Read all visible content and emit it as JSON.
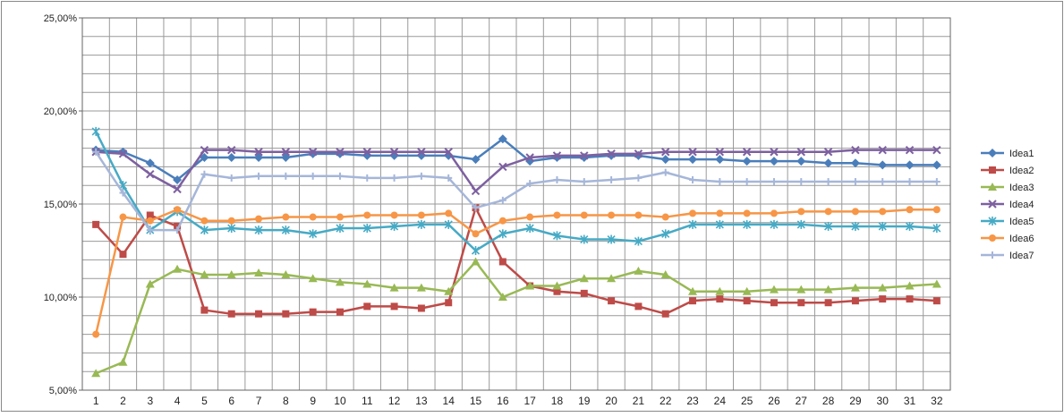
{
  "chart_data": {
    "type": "line",
    "title": "",
    "xlabel": "",
    "ylabel": "",
    "x": [
      1,
      2,
      3,
      4,
      5,
      6,
      7,
      8,
      9,
      10,
      11,
      12,
      13,
      14,
      15,
      16,
      17,
      18,
      19,
      20,
      21,
      22,
      23,
      24,
      25,
      26,
      27,
      28,
      29,
      30,
      31,
      32
    ],
    "xticks": [
      "1",
      "2",
      "3",
      "4",
      "5",
      "6",
      "7",
      "8",
      "9",
      "10",
      "11",
      "12",
      "13",
      "14",
      "15",
      "16",
      "17",
      "18",
      "19",
      "20",
      "21",
      "22",
      "23",
      "24",
      "25",
      "26",
      "27",
      "28",
      "29",
      "30",
      "31",
      "32"
    ],
    "ylim": [
      0.05,
      0.25
    ],
    "yticks": [
      "5,00%",
      "10,00%",
      "15,00%",
      "20,00%",
      "25,00%"
    ],
    "grid": true,
    "legend_position": "right",
    "series": [
      {
        "name": "Idea1",
        "color": "#4a7ebb",
        "marker": "diamond",
        "values": [
          0.179,
          0.178,
          0.172,
          0.163,
          0.175,
          0.175,
          0.175,
          0.175,
          0.177,
          0.177,
          0.176,
          0.176,
          0.176,
          0.176,
          0.174,
          0.185,
          0.173,
          0.175,
          0.175,
          0.176,
          0.176,
          0.174,
          0.174,
          0.174,
          0.173,
          0.173,
          0.173,
          0.172,
          0.172,
          0.171,
          0.171,
          0.171
        ]
      },
      {
        "name": "Idea2",
        "color": "#be4b48",
        "marker": "square",
        "values": [
          0.139,
          0.123,
          0.144,
          0.138,
          0.093,
          0.091,
          0.091,
          0.091,
          0.092,
          0.092,
          0.095,
          0.095,
          0.094,
          0.097,
          0.148,
          0.119,
          0.106,
          0.103,
          0.102,
          0.098,
          0.095,
          0.091,
          0.098,
          0.099,
          0.098,
          0.097,
          0.097,
          0.097,
          0.098,
          0.099,
          0.099,
          0.098
        ]
      },
      {
        "name": "Idea3",
        "color": "#98b954",
        "marker": "triangle",
        "values": [
          0.059,
          0.065,
          0.107,
          0.115,
          0.112,
          0.112,
          0.113,
          0.112,
          0.11,
          0.108,
          0.107,
          0.105,
          0.105,
          0.103,
          0.119,
          0.1,
          0.106,
          0.106,
          0.11,
          0.11,
          0.114,
          0.112,
          0.103,
          0.103,
          0.103,
          0.104,
          0.104,
          0.104,
          0.105,
          0.105,
          0.106,
          0.107
        ]
      },
      {
        "name": "Idea4",
        "color": "#7d60a0",
        "marker": "x",
        "values": [
          0.178,
          0.177,
          0.166,
          0.158,
          0.179,
          0.179,
          0.178,
          0.178,
          0.178,
          0.178,
          0.178,
          0.178,
          0.178,
          0.178,
          0.157,
          0.17,
          0.175,
          0.176,
          0.176,
          0.177,
          0.177,
          0.178,
          0.178,
          0.178,
          0.178,
          0.178,
          0.178,
          0.178,
          0.179,
          0.179,
          0.179,
          0.179
        ]
      },
      {
        "name": "Idea5",
        "color": "#46aac5",
        "marker": "star",
        "values": [
          0.189,
          0.16,
          0.136,
          0.146,
          0.136,
          0.137,
          0.136,
          0.136,
          0.134,
          0.137,
          0.137,
          0.138,
          0.139,
          0.139,
          0.125,
          0.134,
          0.137,
          0.133,
          0.131,
          0.131,
          0.13,
          0.134,
          0.139,
          0.139,
          0.139,
          0.139,
          0.139,
          0.138,
          0.138,
          0.138,
          0.138,
          0.137
        ]
      },
      {
        "name": "Idea6",
        "color": "#f79646",
        "marker": "circle",
        "values": [
          0.08,
          0.143,
          0.141,
          0.147,
          0.141,
          0.141,
          0.142,
          0.143,
          0.143,
          0.143,
          0.144,
          0.144,
          0.144,
          0.145,
          0.134,
          0.141,
          0.143,
          0.144,
          0.144,
          0.144,
          0.144,
          0.143,
          0.145,
          0.145,
          0.145,
          0.145,
          0.146,
          0.146,
          0.146,
          0.146,
          0.147,
          0.147
        ]
      },
      {
        "name": "Idea7",
        "color": "#a5b6d9",
        "marker": "plus",
        "values": [
          0.178,
          0.156,
          0.136,
          0.136,
          0.166,
          0.164,
          0.165,
          0.165,
          0.165,
          0.165,
          0.164,
          0.164,
          0.165,
          0.164,
          0.148,
          0.152,
          0.161,
          0.163,
          0.162,
          0.163,
          0.164,
          0.167,
          0.163,
          0.162,
          0.162,
          0.162,
          0.162,
          0.162,
          0.162,
          0.162,
          0.162,
          0.162
        ]
      }
    ]
  }
}
